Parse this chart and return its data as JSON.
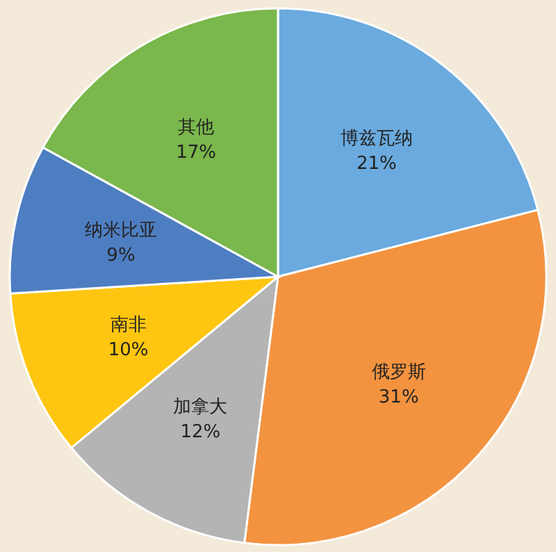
{
  "chart_data": {
    "type": "pie",
    "categories": [
      "博兹瓦纳",
      "俄罗斯",
      "加拿大",
      "南非",
      "纳米比亚",
      "其他"
    ],
    "values": [
      21,
      31,
      12,
      10,
      9,
      17
    ],
    "colors": [
      "#6aaade",
      "#f39340",
      "#b4b4b4",
      "#fec610",
      "#4e7ec2",
      "#7ab74c"
    ],
    "value_labels": [
      "21%",
      "31%",
      "12%",
      "10%",
      "9%",
      "17%"
    ]
  }
}
